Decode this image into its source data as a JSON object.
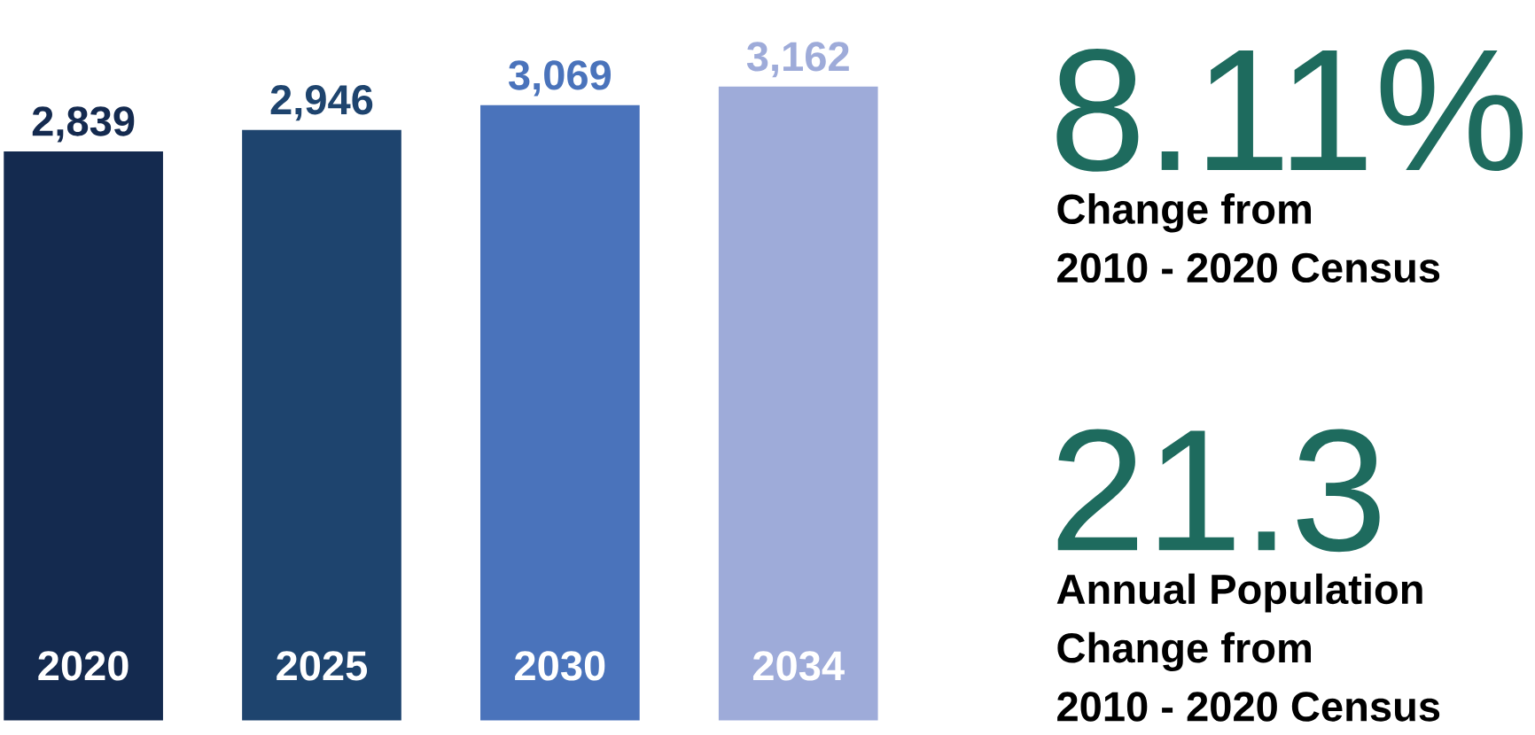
{
  "chart_data": {
    "type": "bar",
    "categories": [
      "2020",
      "2025",
      "2030",
      "2034"
    ],
    "values": [
      2839,
      2946,
      3069,
      3162
    ],
    "value_labels": [
      "2,839",
      "2,946",
      "3,069",
      "3,162"
    ],
    "colors": [
      "#142a4f",
      "#1e446e",
      "#4a73bb",
      "#9eabd9"
    ],
    "annotations": [
      "8.11%",
      "Change from",
      "2010 - 2020 Census",
      "21.3",
      "Annual Population",
      "Change from",
      "2010 - 2020 Census"
    ]
  }
}
